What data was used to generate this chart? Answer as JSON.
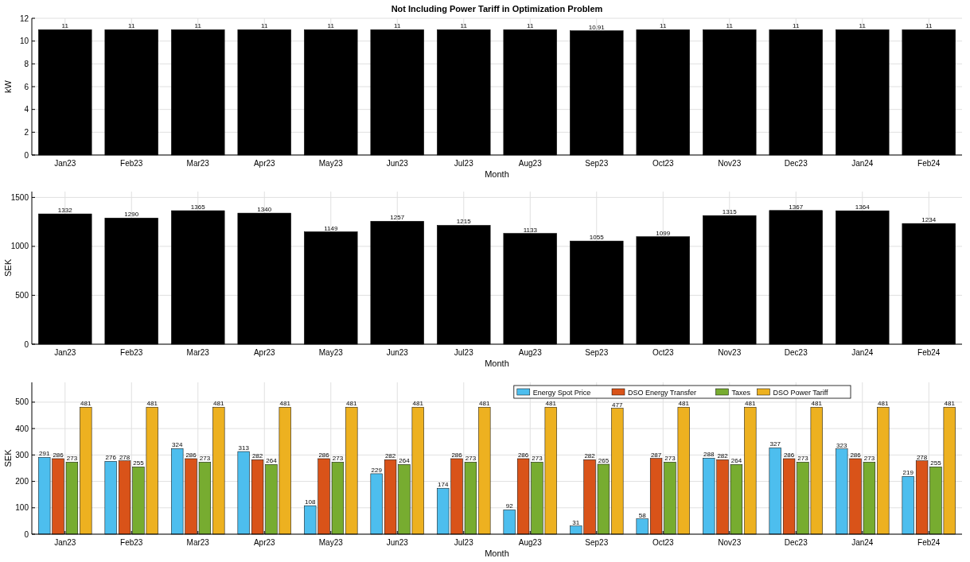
{
  "chart_data": [
    {
      "type": "bar",
      "title": "Not Including Power Tariff in Optimization Problem",
      "xlabel": "Month",
      "ylabel": "kW",
      "categories": [
        "Jan23",
        "Feb23",
        "Mar23",
        "Apr23",
        "May23",
        "Jun23",
        "Jul23",
        "Aug23",
        "Sep23",
        "Oct23",
        "Nov23",
        "Dec23",
        "Jan24",
        "Feb24"
      ],
      "values": [
        11,
        11,
        11,
        11,
        11,
        11,
        11,
        11,
        10.91,
        11,
        11,
        11,
        11,
        11
      ],
      "color": "#000000",
      "ylim": [
        0,
        12
      ],
      "yticks": [
        0,
        2,
        4,
        6,
        8,
        10,
        12
      ],
      "grid": true,
      "data_labels": true
    },
    {
      "type": "bar",
      "xlabel": "Month",
      "ylabel": "SEK",
      "categories": [
        "Jan23",
        "Feb23",
        "Mar23",
        "Apr23",
        "May23",
        "Jun23",
        "Jul23",
        "Aug23",
        "Sep23",
        "Oct23",
        "Nov23",
        "Dec23",
        "Jan24",
        "Feb24"
      ],
      "values": [
        1332,
        1290,
        1365,
        1340,
        1149,
        1257,
        1215,
        1133,
        1055,
        1099,
        1315,
        1367,
        1364,
        1234
      ],
      "color": "#000000",
      "ylim": [
        0,
        1560
      ],
      "yticks": [
        0,
        500,
        1000,
        1500
      ],
      "grid": true,
      "data_labels": true
    },
    {
      "type": "bar",
      "xlabel": "Month",
      "ylabel": "SEK",
      "categories": [
        "Jan23",
        "Feb23",
        "Mar23",
        "Apr23",
        "May23",
        "Jun23",
        "Jul23",
        "Aug23",
        "Sep23",
        "Oct23",
        "Nov23",
        "Dec23",
        "Jan24",
        "Feb24"
      ],
      "series": [
        {
          "name": "Energy Spot Price",
          "color": "#4dbeee",
          "values": [
            291,
            276,
            324,
            313,
            108,
            229,
            174,
            92,
            31,
            58,
            288,
            327,
            323,
            219
          ]
        },
        {
          "name": "DSO Energy Transfer",
          "color": "#d95319",
          "values": [
            286,
            278,
            286,
            282,
            286,
            282,
            286,
            286,
            282,
            287,
            282,
            286,
            286,
            278
          ]
        },
        {
          "name": "Taxes",
          "color": "#77ac30",
          "values": [
            273,
            255,
            273,
            264,
            273,
            264,
            273,
            273,
            265,
            273,
            264,
            273,
            273,
            255
          ]
        },
        {
          "name": "DSO Power Tariff",
          "color": "#edb120",
          "values": [
            481,
            481,
            481,
            481,
            481,
            481,
            481,
            481,
            477,
            481,
            481,
            481,
            481,
            481
          ]
        }
      ],
      "ylim": [
        0,
        575
      ],
      "yticks": [
        0,
        100,
        200,
        300,
        400,
        500
      ],
      "grid": true,
      "legend": "top right",
      "data_labels": true
    }
  ]
}
